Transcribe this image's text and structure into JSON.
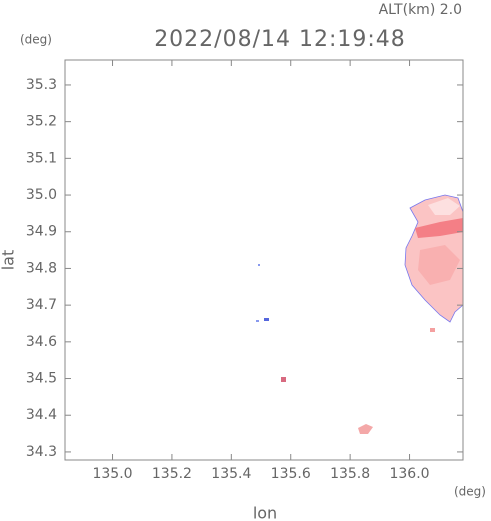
{
  "chart_data": {
    "type": "radar",
    "title": "2022/08/14 12:19:48",
    "subtitle": "ALT(km) 2.0",
    "x_unit": "(deg)",
    "y_unit": "(deg)",
    "xlabel": "lon",
    "ylabel": "lat",
    "xlim": [
      134.84,
      136.18
    ],
    "ylim": [
      34.278,
      35.368
    ],
    "xticks": [
      {
        "value": 135.0,
        "label": "135.0"
      },
      {
        "value": 135.2,
        "label": "135.2"
      },
      {
        "value": 135.4,
        "label": "135.4"
      },
      {
        "value": 135.6,
        "label": "135.6"
      },
      {
        "value": 135.8,
        "label": "135.8"
      },
      {
        "value": 136.0,
        "label": "136.0"
      }
    ],
    "yticks": [
      {
        "value": 34.3,
        "label": "34.3"
      },
      {
        "value": 34.4,
        "label": "34.4"
      },
      {
        "value": 34.5,
        "label": "34.5"
      },
      {
        "value": 34.6,
        "label": "34.6"
      },
      {
        "value": 34.7,
        "label": "34.7"
      },
      {
        "value": 34.8,
        "label": "34.8"
      },
      {
        "value": 34.9,
        "label": "34.9"
      },
      {
        "value": 35.0,
        "label": "35.0"
      },
      {
        "value": 35.1,
        "label": "35.1"
      },
      {
        "value": 35.2,
        "label": "35.2"
      },
      {
        "value": 35.3,
        "label": "35.3"
      }
    ]
  }
}
